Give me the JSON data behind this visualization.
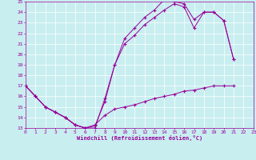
{
  "bg_color": "#c8eef0",
  "line_color": "#990099",
  "grid_color": "#ffffff",
  "xlim": [
    0,
    23
  ],
  "ylim": [
    13,
    25
  ],
  "yticks": [
    13,
    14,
    15,
    16,
    17,
    18,
    19,
    20,
    21,
    22,
    23,
    24,
    25
  ],
  "xticks": [
    0,
    1,
    2,
    3,
    4,
    5,
    6,
    7,
    8,
    9,
    10,
    11,
    12,
    13,
    14,
    15,
    16,
    17,
    18,
    19,
    20,
    21,
    22,
    23
  ],
  "xlabel": "Windchill (Refroidissement éolien,°C)",
  "line1_x": [
    0,
    1,
    2,
    3,
    4,
    5,
    6,
    7,
    8,
    9,
    10,
    11,
    12,
    13,
    14,
    15,
    16,
    17,
    18,
    19,
    20,
    21
  ],
  "line1_y": [
    17,
    16,
    15,
    14.5,
    14,
    13.3,
    13,
    13.2,
    15.5,
    19.0,
    21.5,
    22.5,
    23.5,
    24.2,
    25.2,
    25.0,
    24.8,
    23.3,
    24.0,
    24.0,
    23.2,
    19.5
  ],
  "line2_x": [
    0,
    1,
    2,
    3,
    4,
    5,
    6,
    7,
    8,
    9,
    10,
    11,
    12,
    13,
    14,
    15,
    16,
    17,
    18,
    19,
    20,
    21
  ],
  "line2_y": [
    17,
    16,
    15,
    14.5,
    14,
    13.3,
    13.0,
    13.0,
    15.8,
    19.0,
    21.0,
    21.8,
    22.8,
    23.5,
    24.2,
    24.8,
    24.5,
    22.5,
    24.0,
    24.0,
    23.2,
    19.5
  ],
  "line3_x": [
    0,
    1,
    2,
    3,
    4,
    5,
    6,
    7,
    8,
    9,
    10,
    11,
    12,
    13,
    14,
    15,
    16,
    17,
    18,
    19,
    20,
    21
  ],
  "line3_y": [
    17,
    16,
    15,
    14.5,
    14,
    13.3,
    13.0,
    13.3,
    14.2,
    14.8,
    15.0,
    15.2,
    15.5,
    15.8,
    16.0,
    16.2,
    16.5,
    16.6,
    16.8,
    17.0,
    17.0,
    17.0
  ]
}
